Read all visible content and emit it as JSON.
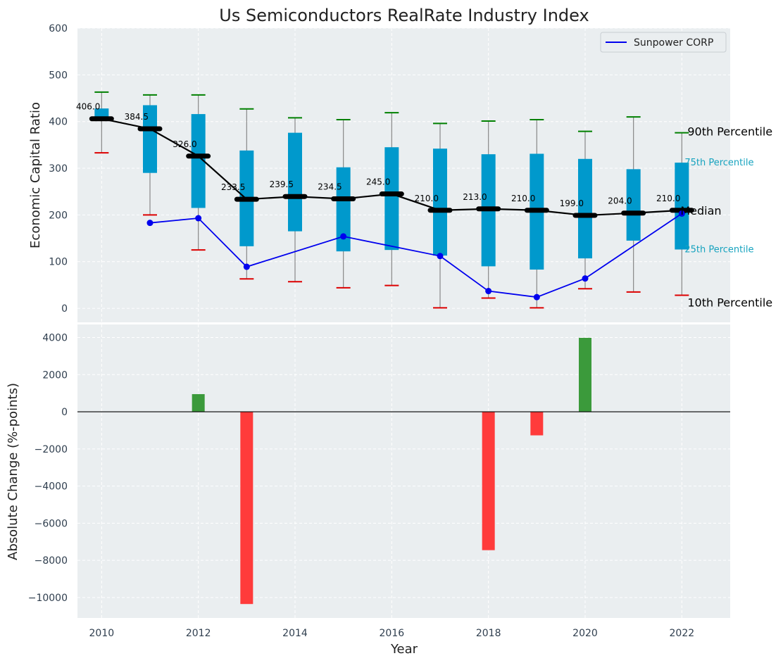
{
  "chart_data": [
    {
      "type": "box",
      "title": "Us Semiconductors RealRate Industry Index",
      "xlabel": "",
      "ylabel": "Economic Capital Ratio",
      "ylim": [
        -30,
        600
      ],
      "yticks": [
        0,
        100,
        200,
        300,
        400,
        500,
        600
      ],
      "xlim": [
        2009.5,
        2023
      ],
      "xticks": [
        2010,
        2012,
        2014,
        2016,
        2018,
        2020,
        2022
      ],
      "years": [
        2010,
        2011,
        2012,
        2013,
        2014,
        2015,
        2016,
        2017,
        2018,
        2019,
        2020,
        2021,
        2022
      ],
      "median": [
        406.0,
        384.5,
        326.0,
        233.5,
        239.5,
        234.5,
        245.0,
        210.0,
        213.0,
        210.0,
        199.0,
        204.0,
        210.0
      ],
      "median_labels": [
        "406.0",
        "384.5",
        "326.0",
        "233.5",
        "239.5",
        "234.5",
        "245.0",
        "210.0",
        "213.0",
        "210.0",
        "199.0",
        "204.0",
        "210.0"
      ],
      "q1": [
        null,
        290,
        215,
        133,
        165,
        122,
        125,
        113,
        90,
        83,
        107,
        145,
        126
      ],
      "q3": [
        428,
        435,
        416,
        338,
        376,
        302,
        345,
        342,
        330,
        331,
        320,
        298,
        312
      ],
      "whisker_high": [
        463,
        457,
        457,
        427,
        408,
        404,
        419,
        396,
        401,
        404,
        379,
        410,
        376
      ],
      "whisker_low": [
        333,
        200,
        125,
        63,
        57,
        44,
        49,
        1,
        22,
        1,
        42,
        35,
        28
      ],
      "company": {
        "name": "Sunpower CORP",
        "years": [
          2011,
          2012,
          2013,
          2015,
          2017,
          2018,
          2019,
          2020,
          2022
        ],
        "values": [
          183,
          193,
          89,
          154,
          112,
          37,
          24,
          64,
          203
        ]
      },
      "legend": [
        "Sunpower CORP"
      ],
      "legend_position": "top-right",
      "percentile_labels": {
        "p90": "90th Percentile",
        "p75": "75th Percentile",
        "median": "Median",
        "p25": "25th Percentile",
        "p10": "10th Percentile"
      }
    },
    {
      "type": "bar",
      "xlabel": "Year",
      "ylabel": "Absolute Change (%-points)",
      "ylim": [
        -11100,
        4700
      ],
      "yticks": [
        -10000,
        -8000,
        -6000,
        -4000,
        -2000,
        0,
        2000,
        4000
      ],
      "ytick_labels": [
        "−10000",
        "−8000",
        "−6000",
        "−4000",
        "−2000",
        "0",
        "2000",
        "4000"
      ],
      "categories": [
        2012,
        2013,
        2018,
        2019,
        2020
      ],
      "values": [
        950,
        -10350,
        -7450,
        -1270,
        3980
      ]
    }
  ],
  "colors": {
    "plot_bg": "#eaeef0",
    "box": "#0099cc",
    "whisker": "#888888",
    "cap_high": "#008000",
    "cap_low": "#dd0000",
    "median_line": "#000000",
    "company_line": "#0000ee",
    "bar_positive": "#3b9a3b",
    "bar_negative": "#ff3b3b"
  },
  "icons": {
    "legend_swatch": "line-swatch-icon"
  }
}
